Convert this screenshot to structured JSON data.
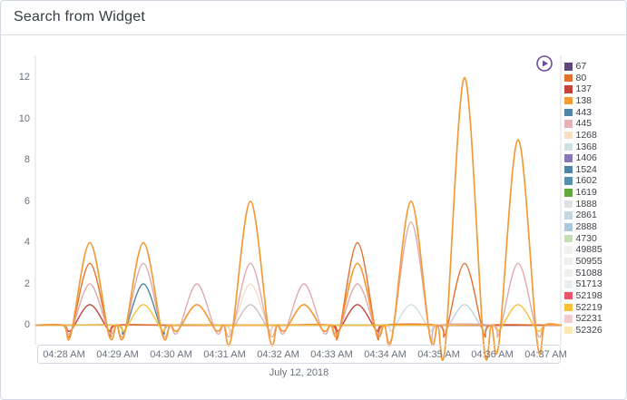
{
  "panel": {
    "title": "Search from Widget"
  },
  "icons": {
    "play_button": "play-circle",
    "play_color": "#6d4a9c"
  },
  "colors": {
    "panel_border": "#d3dae6",
    "divider": "#d9dce3",
    "axis_line": "#dfdbe3",
    "tick_text": "#69707d",
    "title_text": "#363b45",
    "legend_text": "#3b3f46"
  },
  "chart_data": {
    "type": "line",
    "title": "Search from Widget",
    "xlabel": "July 12, 2018",
    "ylabel": "",
    "date_label": "July 12, 2018",
    "x_ticks": [
      "04:28 AM",
      "04:29 AM",
      "04:30 AM",
      "04:31 AM",
      "04:32 AM",
      "04:33 AM",
      "04:34 AM",
      "04:35 AM",
      "04:36 AM",
      "04:37 AM"
    ],
    "y_ticks": [
      0,
      2,
      4,
      6,
      8,
      10,
      12
    ],
    "ylim": [
      -1.2,
      12.6
    ],
    "grid": false,
    "legend_position": "right",
    "note": "values_at_half_minute[k] is the spike value at 04:28:30 + k minutes; lines are 0 at whole minutes with smoothing undershoot below 0",
    "series": [
      {
        "name": "67",
        "color": "#5e4779",
        "values_at_half_minute": [
          0,
          0,
          0,
          0,
          0,
          0,
          0,
          0,
          0
        ]
      },
      {
        "name": "80",
        "color": "#e3702d",
        "values_at_half_minute": [
          3,
          0,
          0,
          0,
          0,
          4,
          0,
          3,
          0
        ]
      },
      {
        "name": "137",
        "color": "#c4423a",
        "values_at_half_minute": [
          1,
          0,
          0,
          0,
          0,
          1,
          0,
          0,
          0
        ]
      },
      {
        "name": "138",
        "color": "#f39b35",
        "values_at_half_minute": [
          4,
          4,
          1,
          6,
          1,
          3,
          6,
          12,
          9
        ]
      },
      {
        "name": "443",
        "color": "#4f86a5",
        "values_at_half_minute": [
          0,
          2,
          0,
          0,
          0,
          0,
          0,
          0,
          0
        ]
      },
      {
        "name": "445",
        "color": "#dfa9ae",
        "values_at_half_minute": [
          2,
          3,
          2,
          3,
          2,
          2,
          5,
          0,
          3
        ]
      },
      {
        "name": "1268",
        "color": "#f7ddc1",
        "values_at_half_minute": [
          0,
          0,
          0,
          2,
          0,
          0,
          0,
          0,
          0
        ]
      },
      {
        "name": "1368",
        "color": "#cfe0e2",
        "values_at_half_minute": [
          0,
          0,
          0,
          0,
          0,
          0,
          1,
          0,
          0
        ]
      },
      {
        "name": "1406",
        "color": "#8878b5",
        "values_at_half_minute": [
          0,
          0,
          0,
          0,
          0,
          0,
          0,
          0,
          0
        ]
      },
      {
        "name": "1524",
        "color": "#4f86a5",
        "values_at_half_minute": [
          0,
          0,
          0,
          0,
          0,
          0,
          0,
          0,
          0
        ]
      },
      {
        "name": "1602",
        "color": "#5590b0",
        "values_at_half_minute": [
          0,
          0,
          0,
          0,
          0,
          0,
          0,
          0,
          0
        ]
      },
      {
        "name": "1619",
        "color": "#61a83d",
        "values_at_half_minute": [
          0,
          0,
          0,
          0,
          0,
          0,
          0,
          0,
          0
        ]
      },
      {
        "name": "1888",
        "color": "#cbbec2",
        "values_at_half_minute": [
          0,
          0,
          0,
          1,
          0,
          0,
          0,
          0,
          0
        ]
      },
      {
        "name": "2861",
        "color": "#bdd3e0",
        "values_at_half_minute": [
          0,
          0,
          0,
          0,
          0,
          0,
          0,
          1,
          0
        ]
      },
      {
        "name": "2888",
        "color": "#abc8de",
        "values_at_half_minute": [
          0,
          0,
          0,
          0,
          0,
          0,
          0,
          0,
          0
        ]
      },
      {
        "name": "4730",
        "color": "#c4ddb6",
        "values_at_half_minute": [
          0,
          0,
          0,
          0,
          0,
          0,
          0,
          0,
          0
        ]
      },
      {
        "name": "49885",
        "color": "#f1f1ef",
        "values_at_half_minute": [
          0,
          0,
          0,
          0,
          0,
          0,
          0,
          0,
          0
        ]
      },
      {
        "name": "50955",
        "color": "#eef1ea",
        "values_at_half_minute": [
          0,
          0,
          0,
          0,
          0,
          0,
          0,
          0,
          0
        ]
      },
      {
        "name": "51088",
        "color": "#efefed",
        "values_at_half_minute": [
          0,
          0,
          0,
          0,
          0,
          0,
          0,
          0,
          0
        ]
      },
      {
        "name": "51713",
        "color": "#e9eff1",
        "values_at_half_minute": [
          0,
          0,
          0,
          0,
          0,
          0,
          0,
          0,
          0
        ]
      },
      {
        "name": "52198",
        "color": "#e85469",
        "values_at_half_minute": [
          0,
          0,
          0,
          0,
          0,
          0,
          0,
          0,
          0
        ]
      },
      {
        "name": "52219",
        "color": "#f8c032",
        "values_at_half_minute": [
          0,
          1,
          0,
          0,
          0,
          0,
          0,
          0,
          1
        ]
      },
      {
        "name": "52231",
        "color": "#f2cdcb",
        "values_at_half_minute": [
          0,
          0,
          0,
          0,
          0,
          0,
          0,
          0,
          0
        ]
      },
      {
        "name": "52326",
        "color": "#fbe8b5",
        "values_at_half_minute": [
          0,
          0,
          0,
          0,
          0,
          0,
          0,
          0,
          0
        ]
      }
    ],
    "draw_order": [
      "67",
      "1406",
      "1524",
      "1602",
      "1619",
      "2888",
      "4730",
      "49885",
      "50955",
      "51088",
      "51713",
      "52198",
      "52326",
      "52231",
      "1888",
      "1368",
      "2861",
      "1268",
      "443",
      "137",
      "80",
      "52219",
      "445",
      "138"
    ]
  },
  "legend": {
    "items": [
      {
        "label": "67",
        "color": "#5e4779"
      },
      {
        "label": "80",
        "color": "#e3702d"
      },
      {
        "label": "137",
        "color": "#c4423a"
      },
      {
        "label": "138",
        "color": "#f39b35"
      },
      {
        "label": "443",
        "color": "#4f86a5"
      },
      {
        "label": "445",
        "color": "#e5b1b5"
      },
      {
        "label": "1268",
        "color": "#f7ddc1"
      },
      {
        "label": "1368",
        "color": "#cfe0e2"
      },
      {
        "label": "1406",
        "color": "#8878b5"
      },
      {
        "label": "1524",
        "color": "#4f86a5"
      },
      {
        "label": "1602",
        "color": "#5590b0"
      },
      {
        "label": "1619",
        "color": "#61a83d"
      },
      {
        "label": "1888",
        "color": "#e2e0e0"
      },
      {
        "label": "2861",
        "color": "#c5d8e2"
      },
      {
        "label": "2888",
        "color": "#abc8de"
      },
      {
        "label": "4730",
        "color": "#c4ddb6"
      },
      {
        "label": "49885",
        "color": "#f1f1ef"
      },
      {
        "label": "50955",
        "color": "#eef1ea"
      },
      {
        "label": "51088",
        "color": "#efefed"
      },
      {
        "label": "51713",
        "color": "#e9eff1"
      },
      {
        "label": "52198",
        "color": "#e85469"
      },
      {
        "label": "52219",
        "color": "#f8c032"
      },
      {
        "label": "52231",
        "color": "#f2cdcb"
      },
      {
        "label": "52326",
        "color": "#fbe8b5"
      }
    ]
  }
}
